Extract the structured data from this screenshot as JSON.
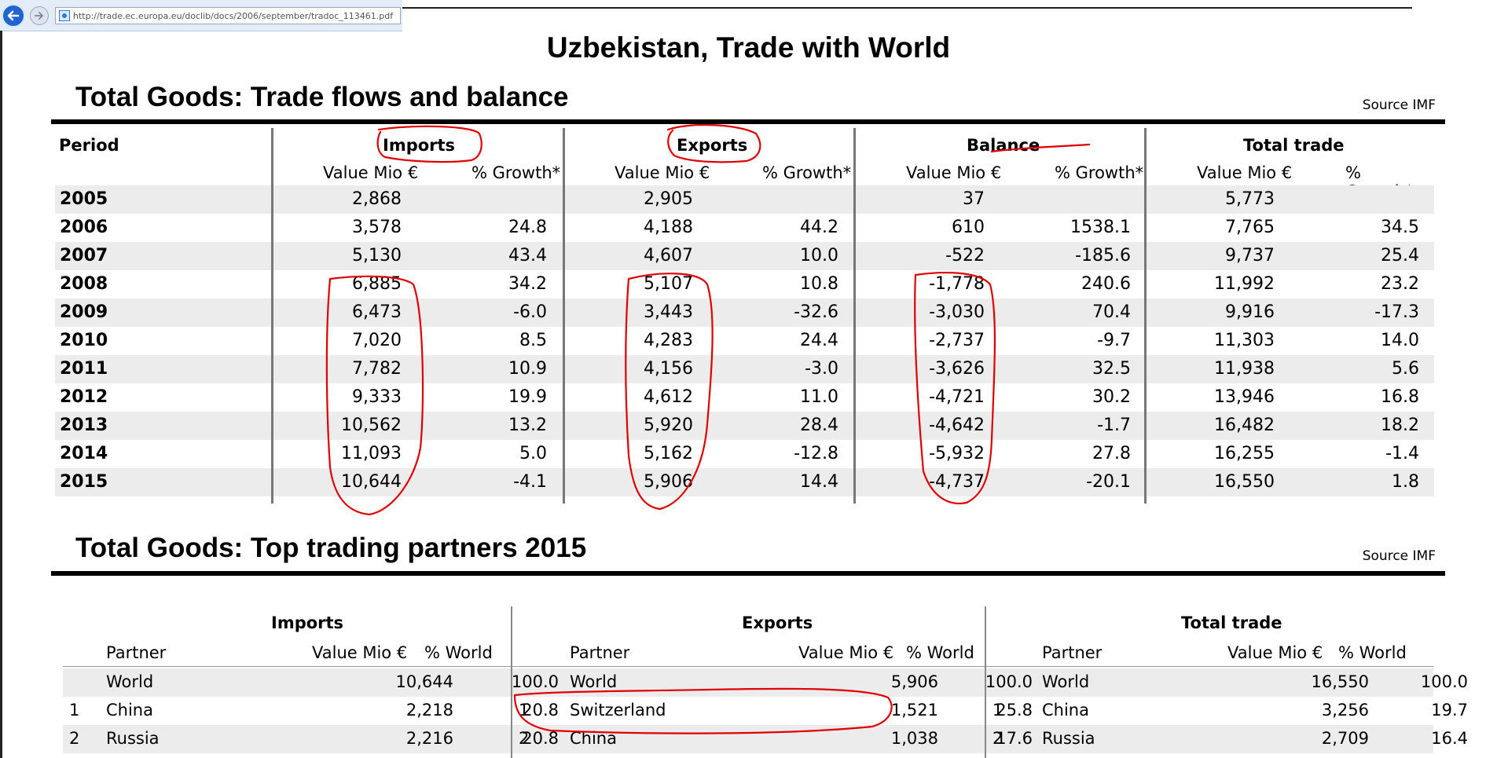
{
  "browser": {
    "url": "http://trade.ec.europa.eu/doclib/docs/2006/september/tradoc_113461.pdf"
  },
  "title": "Uzbekistan, Trade with World",
  "flows": {
    "section_title": "Total Goods: Trade flows and balance",
    "source": "Source IMF",
    "period_label": "Period",
    "groups": [
      "Imports",
      "Exports",
      "Balance",
      "Total trade"
    ],
    "value_label": "Value Mio €",
    "growth_label": "% Growth*",
    "rows": [
      {
        "year": "2005",
        "cells": [
          "2,868",
          "",
          "2,905",
          "",
          "37",
          "",
          "5,773",
          ""
        ]
      },
      {
        "year": "2006",
        "cells": [
          "3,578",
          "24.8",
          "4,188",
          "44.2",
          "610",
          "1538.1",
          "7,765",
          "34.5"
        ]
      },
      {
        "year": "2007",
        "cells": [
          "5,130",
          "43.4",
          "4,607",
          "10.0",
          "-522",
          "-185.6",
          "9,737",
          "25.4"
        ]
      },
      {
        "year": "2008",
        "cells": [
          "6,885",
          "34.2",
          "5,107",
          "10.8",
          "-1,778",
          "240.6",
          "11,992",
          "23.2"
        ]
      },
      {
        "year": "2009",
        "cells": [
          "6,473",
          "-6.0",
          "3,443",
          "-32.6",
          "-3,030",
          "70.4",
          "9,916",
          "-17.3"
        ]
      },
      {
        "year": "2010",
        "cells": [
          "7,020",
          "8.5",
          "4,283",
          "24.4",
          "-2,737",
          "-9.7",
          "11,303",
          "14.0"
        ]
      },
      {
        "year": "2011",
        "cells": [
          "7,782",
          "10.9",
          "4,156",
          "-3.0",
          "-3,626",
          "32.5",
          "11,938",
          "5.6"
        ]
      },
      {
        "year": "2012",
        "cells": [
          "9,333",
          "19.9",
          "4,612",
          "11.0",
          "-4,721",
          "30.2",
          "13,946",
          "16.8"
        ]
      },
      {
        "year": "2013",
        "cells": [
          "10,562",
          "13.2",
          "5,920",
          "28.4",
          "-4,642",
          "-1.7",
          "16,482",
          "18.2"
        ]
      },
      {
        "year": "2014",
        "cells": [
          "11,093",
          "5.0",
          "5,162",
          "-12.8",
          "-5,932",
          "27.8",
          "16,255",
          "-1.4"
        ]
      },
      {
        "year": "2015",
        "cells": [
          "10,644",
          "-4.1",
          "5,906",
          "14.4",
          "-4,737",
          "-20.1",
          "16,550",
          "1.8"
        ]
      }
    ]
  },
  "partners": {
    "section_title": "Total Goods: Top trading partners 2015",
    "source": "Source IMF",
    "partner_label": "Partner",
    "value_label": "Value Mio €",
    "world_label": "% World",
    "groups": [
      {
        "name": "Imports",
        "rows": [
          {
            "rank": "",
            "partner": "World",
            "value": "10,644",
            "share": "100.0"
          },
          {
            "rank": "1",
            "partner": "China",
            "value": "2,218",
            "share": "20.8"
          },
          {
            "rank": "2",
            "partner": "Russia",
            "value": "2,216",
            "share": "20.8"
          }
        ]
      },
      {
        "name": "Exports",
        "rows": [
          {
            "rank": "",
            "partner": "World",
            "value": "5,906",
            "share": "100.0"
          },
          {
            "rank": "1",
            "partner": "Switzerland",
            "value": "1,521",
            "share": "25.8"
          },
          {
            "rank": "2",
            "partner": "China",
            "value": "1,038",
            "share": "17.6"
          }
        ]
      },
      {
        "name": "Total trade",
        "rows": [
          {
            "rank": "",
            "partner": "World",
            "value": "16,550",
            "share": "100.0"
          },
          {
            "rank": "1",
            "partner": "China",
            "value": "3,256",
            "share": "19.7"
          },
          {
            "rank": "2",
            "partner": "Russia",
            "value": "2,709",
            "share": "16.4"
          }
        ]
      }
    ]
  },
  "annotation_color": "#e00000"
}
